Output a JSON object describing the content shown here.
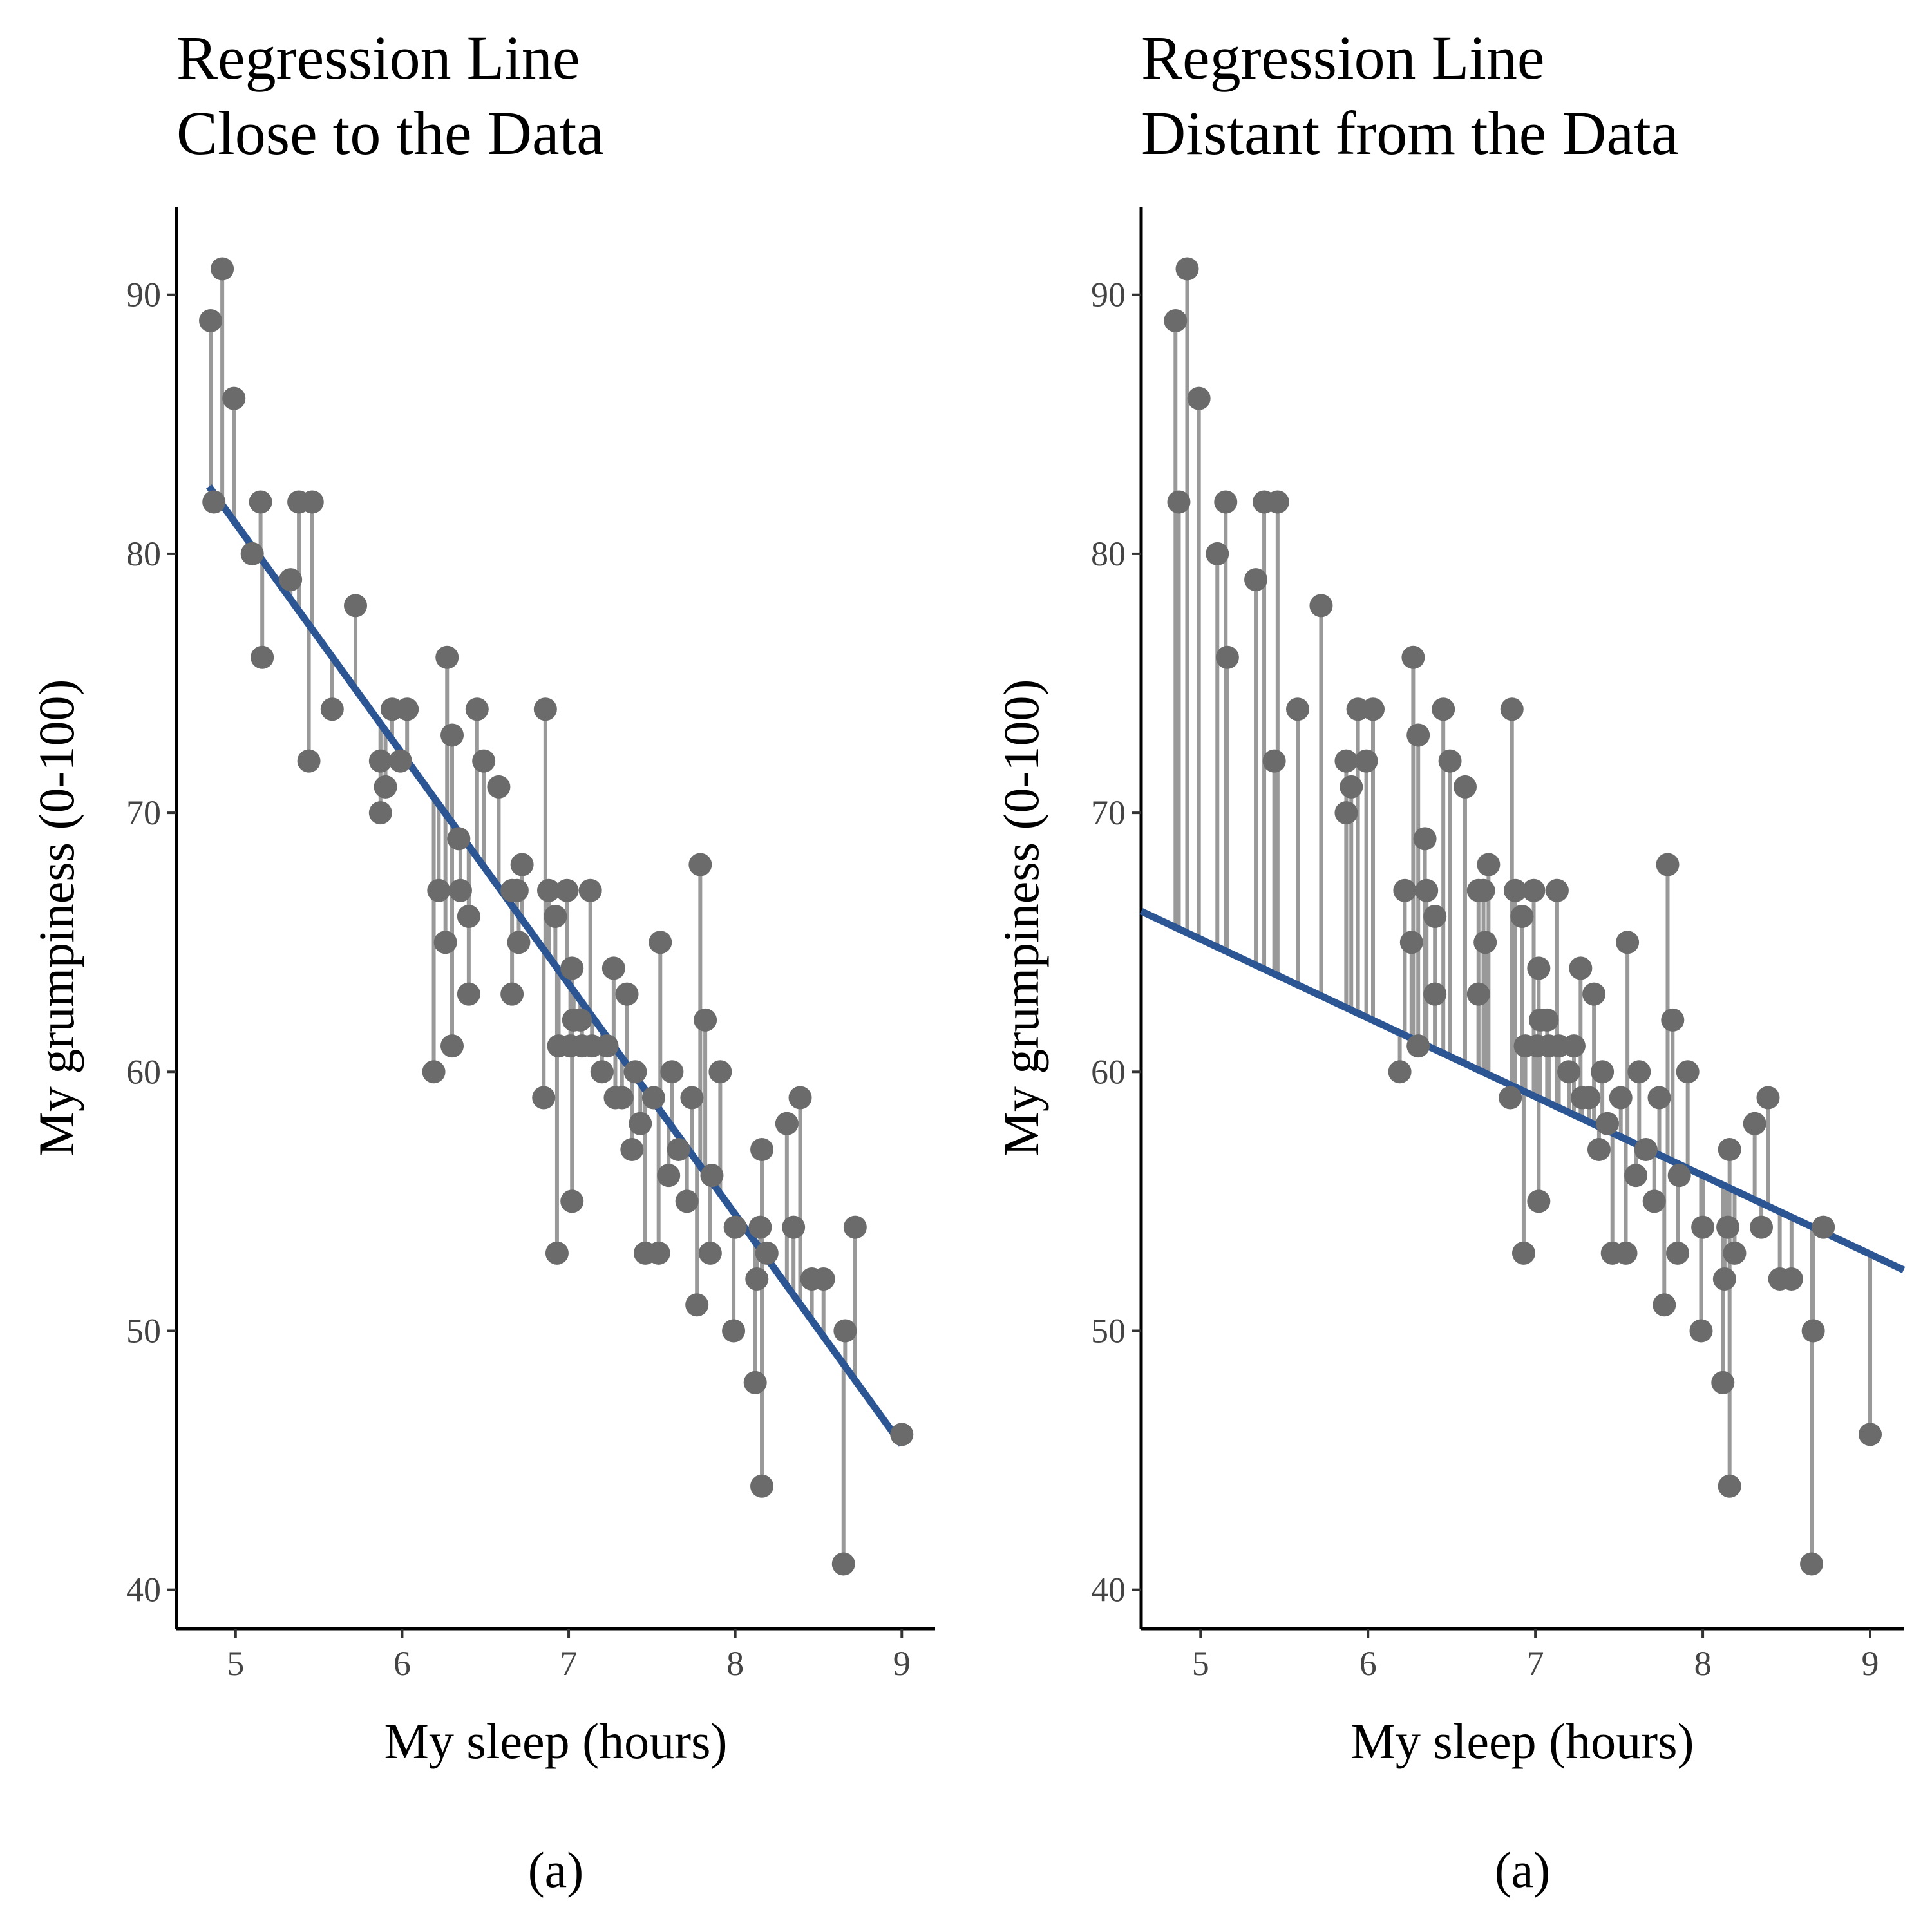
{
  "chart_data": [
    {
      "type": "scatter",
      "title_lines": [
        "Regression Line",
        "Close to the Data"
      ],
      "x_label": "My sleep (hours)",
      "y_label": "My grumpiness (0-100)",
      "caption": "(a)",
      "point_color": "#6b6b6b",
      "residual_color": "#999999",
      "line_color": "#2c5593",
      "xlim": [
        4.645,
        9.2
      ],
      "ylim": [
        38.5,
        93.4
      ],
      "xticks": [
        5,
        6,
        7,
        8,
        9
      ],
      "yticks": [
        40,
        50,
        60,
        70,
        80,
        90
      ],
      "x": [
        4.85,
        4.87,
        4.92,
        4.99,
        5.1,
        5.15,
        5.16,
        5.33,
        5.38,
        5.44,
        5.46,
        5.58,
        5.72,
        5.87,
        5.87,
        5.9,
        5.94,
        5.99,
        6.03,
        6.19,
        6.22,
        6.26,
        6.27,
        6.3,
        6.3,
        6.34,
        6.35,
        6.4,
        6.4,
        6.45,
        6.49,
        6.58,
        6.66,
        6.66,
        6.69,
        6.7,
        6.72,
        6.85,
        6.86,
        6.88,
        6.92,
        6.93,
        6.94,
        6.99,
        7.01,
        7.02,
        7.02,
        7.03,
        7.07,
        7.08,
        7.13,
        7.14,
        7.2,
        7.23,
        7.27,
        7.28,
        7.32,
        7.35,
        7.38,
        7.4,
        7.43,
        7.46,
        7.51,
        7.54,
        7.55,
        7.6,
        7.62,
        7.66,
        7.71,
        7.74,
        7.77,
        7.79,
        7.82,
        7.85,
        7.86,
        7.91,
        7.99,
        8.0,
        8.12,
        8.13,
        8.15,
        8.16,
        8.16,
        8.19,
        8.31,
        8.35,
        8.39,
        8.46,
        8.53,
        8.65,
        8.66,
        8.72,
        9.0
      ],
      "y": [
        89,
        82,
        91,
        86,
        80,
        82,
        76,
        79,
        82,
        72,
        82,
        74,
        78,
        72,
        70,
        71,
        74,
        72,
        74,
        60,
        67,
        65,
        76,
        61,
        73,
        69,
        67,
        66,
        63,
        74,
        72,
        71,
        67,
        63,
        67,
        65,
        68,
        59,
        74,
        67,
        66,
        53,
        61,
        67,
        61,
        64,
        55,
        62,
        62,
        61,
        67,
        61,
        60,
        61,
        64,
        59,
        59,
        63,
        57,
        60,
        58,
        53,
        59,
        53,
        65,
        56,
        60,
        57,
        55,
        59,
        51,
        68,
        62,
        53,
        56,
        60,
        50,
        54,
        48,
        52,
        54,
        57,
        44,
        53,
        58,
        54,
        59,
        52,
        52,
        41,
        50,
        54,
        46
      ],
      "line": {
        "x": [
          4.84,
          9.0
        ],
        "y": [
          82.6,
          45.6
        ]
      }
    },
    {
      "type": "scatter",
      "title_lines": [
        "Regression Line",
        "Distant from the Data"
      ],
      "x_label": "My sleep (hours)",
      "y_label": "My grumpiness (0-100)",
      "caption": "(a)",
      "point_color": "#6b6b6b",
      "residual_color": "#999999",
      "line_color": "#2c5593",
      "xlim": [
        4.645,
        9.2
      ],
      "ylim": [
        38.5,
        93.4
      ],
      "xticks": [
        5,
        6,
        7,
        8,
        9
      ],
      "yticks": [
        40,
        50,
        60,
        70,
        80,
        90
      ],
      "x": [
        4.85,
        4.87,
        4.92,
        4.99,
        5.1,
        5.15,
        5.16,
        5.33,
        5.38,
        5.44,
        5.46,
        5.58,
        5.72,
        5.87,
        5.87,
        5.9,
        5.94,
        5.99,
        6.03,
        6.19,
        6.22,
        6.26,
        6.27,
        6.3,
        6.3,
        6.34,
        6.35,
        6.4,
        6.4,
        6.45,
        6.49,
        6.58,
        6.66,
        6.66,
        6.69,
        6.7,
        6.72,
        6.85,
        6.86,
        6.88,
        6.92,
        6.93,
        6.94,
        6.99,
        7.01,
        7.02,
        7.02,
        7.03,
        7.07,
        7.08,
        7.13,
        7.14,
        7.2,
        7.23,
        7.27,
        7.28,
        7.32,
        7.35,
        7.38,
        7.4,
        7.43,
        7.46,
        7.51,
        7.54,
        7.55,
        7.6,
        7.62,
        7.66,
        7.71,
        7.74,
        7.77,
        7.79,
        7.82,
        7.85,
        7.86,
        7.91,
        7.99,
        8.0,
        8.12,
        8.13,
        8.15,
        8.16,
        8.16,
        8.19,
        8.31,
        8.35,
        8.39,
        8.46,
        8.53,
        8.65,
        8.66,
        8.72,
        9.0
      ],
      "y": [
        89,
        82,
        91,
        86,
        80,
        82,
        76,
        79,
        82,
        72,
        82,
        74,
        78,
        72,
        70,
        71,
        74,
        72,
        74,
        60,
        67,
        65,
        76,
        61,
        73,
        69,
        67,
        66,
        63,
        74,
        72,
        71,
        67,
        63,
        67,
        65,
        68,
        59,
        74,
        67,
        66,
        53,
        61,
        67,
        61,
        64,
        55,
        62,
        62,
        61,
        67,
        61,
        60,
        61,
        64,
        59,
        59,
        63,
        57,
        60,
        58,
        53,
        59,
        53,
        65,
        56,
        60,
        57,
        55,
        59,
        51,
        68,
        62,
        53,
        56,
        60,
        50,
        54,
        48,
        52,
        54,
        57,
        44,
        53,
        58,
        54,
        59,
        52,
        52,
        41,
        50,
        54,
        46
      ],
      "line": {
        "x": [
          4.645,
          9.2
        ],
        "y": [
          66.2,
          52.35
        ]
      }
    }
  ]
}
